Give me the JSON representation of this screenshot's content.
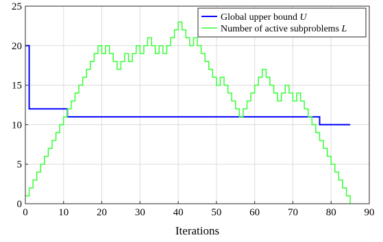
{
  "chart_data": {
    "type": "line",
    "xlabel": "Iterations",
    "ylabel": "",
    "xlim": [
      0,
      90
    ],
    "ylim": [
      0,
      25
    ],
    "xticks": [
      0,
      10,
      20,
      30,
      40,
      50,
      60,
      70,
      80,
      90
    ],
    "yticks": [
      0,
      5,
      10,
      15,
      20,
      25
    ],
    "grid": true,
    "step": true,
    "legend_position": "top-right",
    "series": [
      {
        "name": "Global upper bound",
        "name_var": "U",
        "color": "#0000ff",
        "x": [
          0,
          1,
          11,
          77,
          85
        ],
        "y": [
          20,
          12,
          11,
          10,
          10
        ]
      },
      {
        "name": "Number of active subproblems",
        "name_var": "L",
        "color": "#33ff33",
        "x": [
          0,
          1,
          2,
          3,
          4,
          5,
          6,
          7,
          8,
          9,
          10,
          11,
          12,
          13,
          14,
          15,
          16,
          17,
          18,
          19,
          20,
          21,
          22,
          23,
          24,
          25,
          26,
          27,
          28,
          29,
          30,
          31,
          32,
          33,
          34,
          35,
          36,
          37,
          38,
          39,
          40,
          41,
          42,
          43,
          44,
          45,
          46,
          47,
          48,
          49,
          50,
          51,
          52,
          53,
          54,
          55,
          56,
          57,
          58,
          59,
          60,
          61,
          62,
          63,
          64,
          65,
          66,
          67,
          68,
          69,
          70,
          71,
          72,
          73,
          74,
          75,
          76,
          77,
          78,
          79,
          80,
          81,
          82,
          83,
          84,
          85
        ],
        "y": [
          1,
          2,
          3,
          4,
          5,
          6,
          7,
          8,
          9,
          10,
          11,
          12,
          13,
          14,
          15,
          16,
          17,
          18,
          19,
          20,
          19,
          20,
          19,
          18,
          17,
          18,
          19,
          18,
          19,
          20,
          19,
          20,
          21,
          20,
          19,
          20,
          19,
          20,
          21,
          22,
          23,
          22,
          21,
          20,
          21,
          20,
          19,
          18,
          17,
          16,
          15,
          16,
          15,
          14,
          13,
          12,
          11,
          12,
          13,
          14,
          15,
          16,
          17,
          16,
          15,
          14,
          13,
          14,
          15,
          14,
          13,
          14,
          13,
          12,
          11,
          10,
          9,
          8,
          7,
          6,
          5,
          4,
          3,
          2,
          1,
          0
        ]
      }
    ]
  }
}
